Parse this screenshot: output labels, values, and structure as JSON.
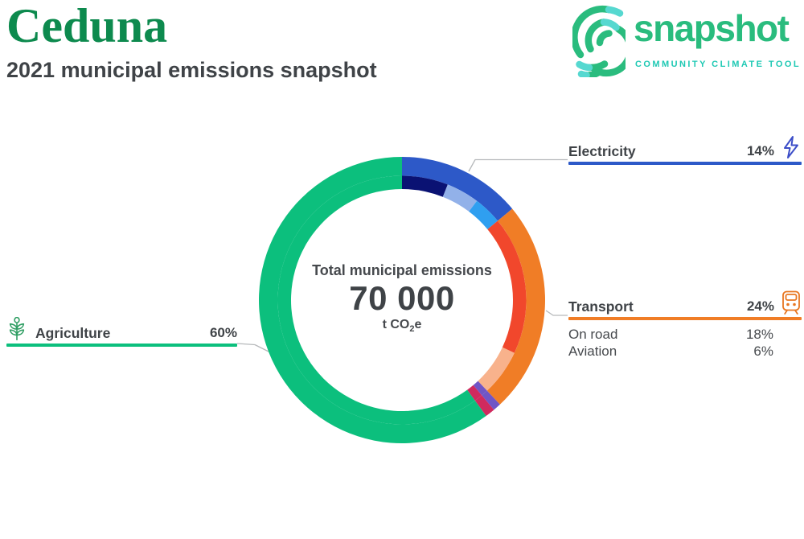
{
  "header": {
    "city": "Ceduna",
    "subtitle": "2021 municipal emissions snapshot"
  },
  "brand": {
    "title_green": "#0d8a4e",
    "logo_green": "#2abc7e",
    "logo_teal": "#56d8d0",
    "caption_teal": "#1fc9b4",
    "connector_gray": "#b6b9bb"
  },
  "logo": {
    "name": "snapshot",
    "caption": "COMMUNITY CLIMATE TOOL",
    "mark_icon": "fingerprint-swirl-icon"
  },
  "donut_center": {
    "label": "Total municipal emissions",
    "value": "70 000",
    "unit_main": "t CO",
    "unit_sub": "2",
    "unit_tail": "e"
  },
  "callouts": {
    "electricity": {
      "label": "Electricity",
      "percent": "14%",
      "color": "#2d59c8",
      "icon": "lightning-icon",
      "icon_color": "#3c4ec8"
    },
    "transport": {
      "label": "Transport",
      "percent": "24%",
      "color": "#f07d26",
      "icon": "train-icon",
      "icon_color": "#e87722",
      "rows": [
        {
          "label": "On road",
          "percent": "18%"
        },
        {
          "label": "Aviation",
          "percent": "6%"
        }
      ]
    },
    "agriculture": {
      "label": "Agriculture",
      "percent": "60%",
      "color": "#0cbf7d",
      "icon": "wheat-icon",
      "icon_color": "#2f9e63"
    }
  },
  "chart_data": {
    "type": "pie",
    "subtype": "two-ring-donut",
    "title": "Total municipal emissions",
    "total_value": 70000,
    "total_value_display": "70 000",
    "unit": "t CO2e",
    "start_angle_deg": 0,
    "direction": "clockwise",
    "outer_ring": {
      "radius_inner": 154.5,
      "radius_outer": 178,
      "segments": [
        {
          "label": "Electricity",
          "percent": 14,
          "color": "#2d59c8"
        },
        {
          "label": "Transport",
          "percent": 24,
          "color": "#f07d26"
        },
        {
          "label": "",
          "percent": 0.9,
          "color": "#7055c6"
        },
        {
          "label": "",
          "percent": 1.1,
          "color": "#d02a5e"
        },
        {
          "label": "Agriculture",
          "percent": 60,
          "color": "#0cbf7d"
        }
      ]
    },
    "inner_ring": {
      "radius_inner": 138,
      "radius_outer": 154.5,
      "segments": [
        {
          "label": "",
          "percent": 6,
          "color": "#0a1273"
        },
        {
          "label": "",
          "percent": 4.3,
          "color": "#92b1e9"
        },
        {
          "label": "",
          "percent": 3.7,
          "color": "#2f9ff0"
        },
        {
          "label": "On road",
          "percent": 18,
          "color": "#f1472c"
        },
        {
          "label": "Aviation",
          "percent": 6,
          "color": "#f8b28c"
        },
        {
          "label": "",
          "percent": 0.9,
          "color": "#7055c6"
        },
        {
          "label": "",
          "percent": 1.1,
          "color": "#d02a5e"
        },
        {
          "label": "",
          "percent": 60,
          "color": "#0cbf7d"
        }
      ]
    }
  }
}
